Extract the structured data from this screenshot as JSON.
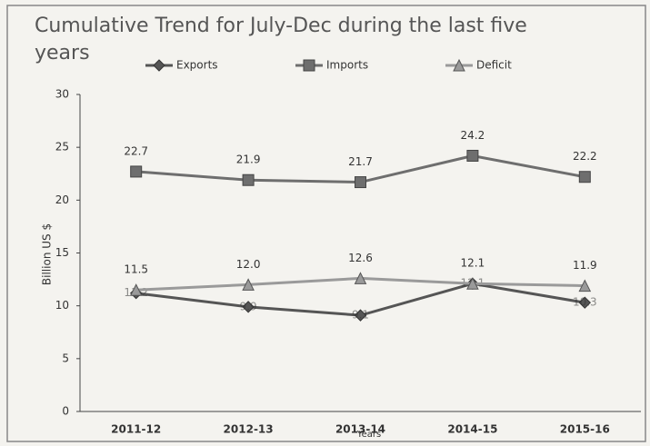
{
  "chart_data": {
    "type": "line",
    "title": "Cumulative Trend for July-Dec during the last five years",
    "x_label": "Years",
    "y_label": "Billion US $",
    "categories": [
      "2011-12",
      "2012-13",
      "2013-14",
      "2014-15",
      "2015-16"
    ],
    "series": [
      {
        "name": "Exports",
        "color": "#555555",
        "marker": "diamond",
        "values": [
          11.2,
          9.9,
          9.1,
          12.1,
          10.3
        ],
        "value_labels": [
          "11.2",
          "9.9",
          "9.1",
          "12.1",
          "10.3"
        ]
      },
      {
        "name": "Imports",
        "color": "#6e6e6e",
        "marker": "square",
        "values": [
          22.7,
          21.9,
          21.7,
          24.2,
          22.2
        ],
        "value_labels": [
          "22.7",
          "21.9",
          "21.7",
          "24.2",
          "22.2"
        ]
      },
      {
        "name": "Deficit",
        "color": "#9a9a9a",
        "marker": "triangle",
        "values": [
          11.5,
          12.0,
          12.6,
          12.1,
          11.9
        ],
        "value_labels": [
          "11.5",
          "12.0",
          "12.6",
          "12.1",
          "11.9"
        ]
      }
    ],
    "ylim": [
      0,
      30
    ],
    "yticks": [
      0,
      5,
      10,
      15,
      20,
      25,
      30
    ],
    "grid": false,
    "legend": "top"
  }
}
